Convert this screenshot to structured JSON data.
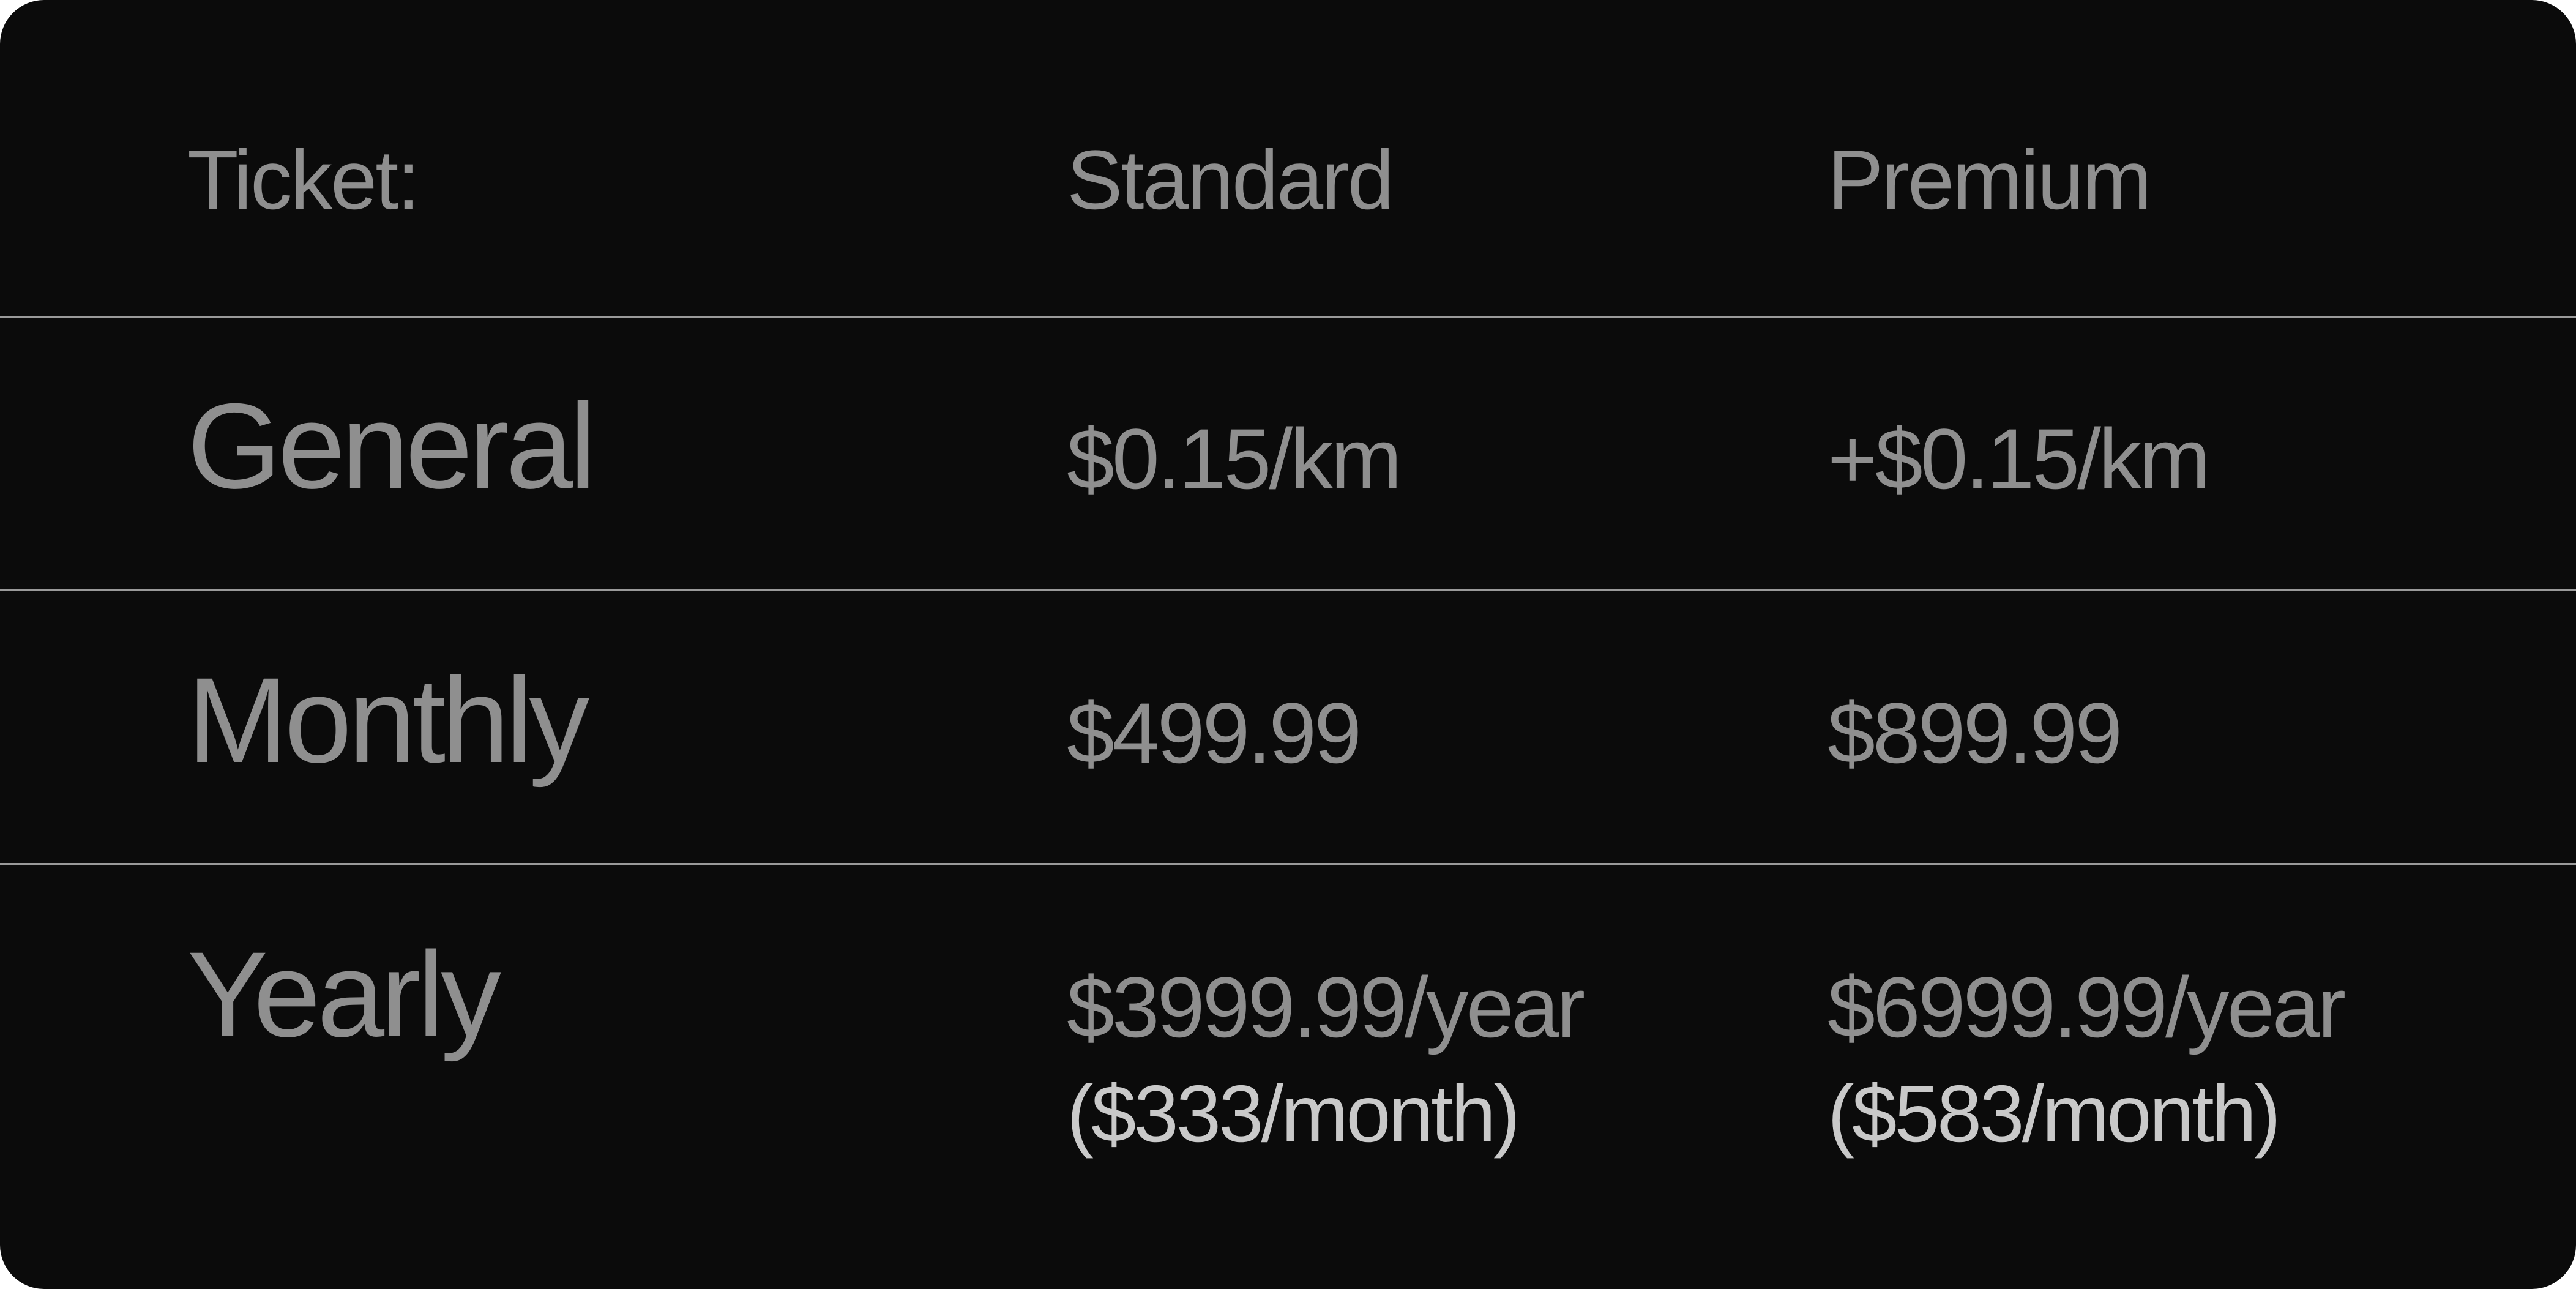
{
  "header": {
    "ticket_label": "Ticket:",
    "standard_label": "Standard",
    "premium_label": "Premium"
  },
  "rows": [
    {
      "label": "General",
      "standard": "$0.15/km",
      "premium": "+$0.15/km"
    },
    {
      "label": "Monthly",
      "standard": "$499.99",
      "premium": "$899.99"
    },
    {
      "label": "Yearly",
      "standard": "$3999.99/year",
      "standard_sub": "($333/month)",
      "premium": "$6999.99/year",
      "premium_sub": "($583/month)"
    }
  ],
  "colors": {
    "background": "#0b0b0b",
    "text": "#8f8f8f",
    "subtext": "#c9c9c9",
    "divider": "#9a9a9a"
  }
}
